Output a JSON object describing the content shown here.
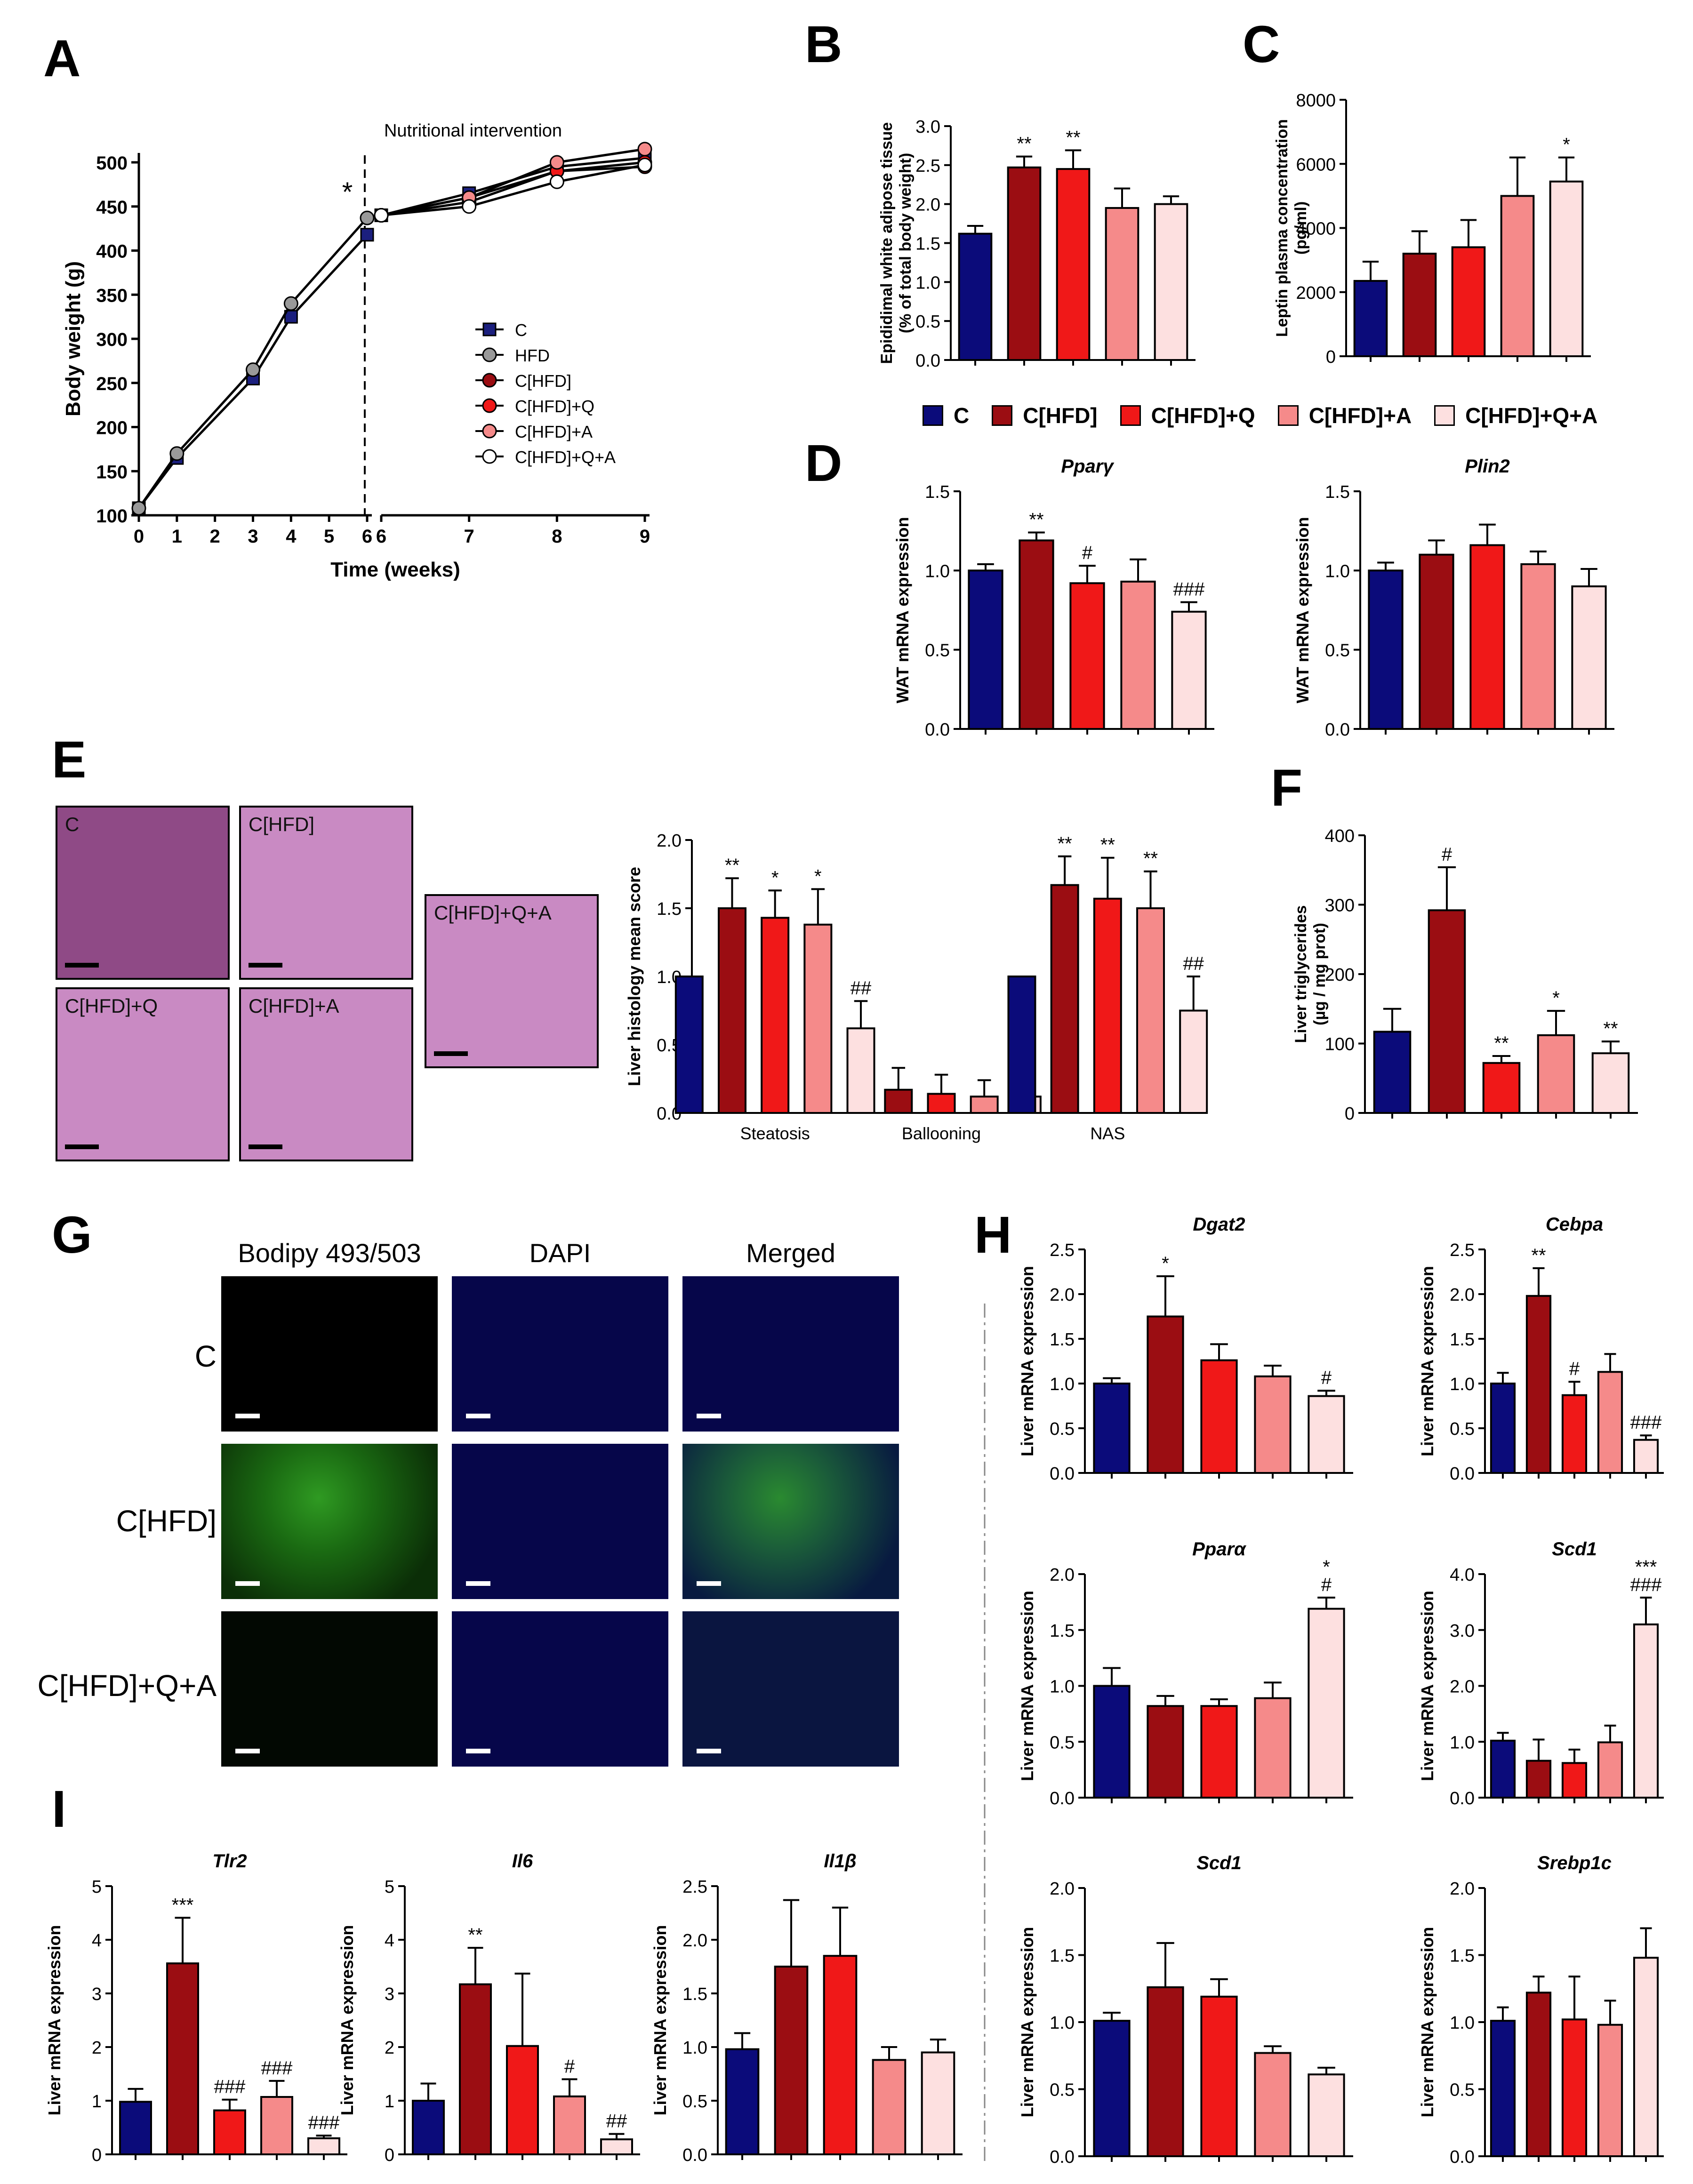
{
  "panels": {
    "A": "A",
    "B": "B",
    "C": "C",
    "D": "D",
    "E": "E",
    "F": "F",
    "G": "G",
    "H": "H",
    "I": "I"
  },
  "group_colors": {
    "C": "#0b0b7a",
    "C[HFD]": "#9b0d12",
    "C[HFD]+Q": "#f01818",
    "C[HFD]+A": "#f58a8a",
    "C[HFD]+Q+A": "#fde0e0"
  },
  "group_legend": [
    "C",
    "C[HFD]",
    "C[HFD]+Q",
    "C[HFD]+A",
    "C[HFD]+Q+A"
  ],
  "panel_E_photos": [
    "C",
    "C[HFD]",
    "C[HFD]+Q+A",
    "C[HFD]+Q",
    "C[HFD]+A"
  ],
  "panel_G": {
    "columns": [
      "Bodipy 493/503",
      "DAPI",
      "Merged"
    ],
    "rows": [
      "C",
      "C[HFD]",
      "C[HFD]+Q+A"
    ]
  },
  "chart_data": [
    {
      "id": "A",
      "type": "line",
      "xlabel": "Time (weeks)",
      "ylabel": "Body weight (g)",
      "annotation": "Nutritional intervention",
      "ylim": [
        100,
        500
      ],
      "yticks": [
        100,
        150,
        200,
        250,
        300,
        350,
        400,
        450,
        500
      ],
      "xticks_left": [
        "0",
        "1",
        "2",
        "3",
        "4",
        "5",
        "6"
      ],
      "xticks_right": [
        "6",
        "7",
        "8",
        "9"
      ],
      "legend": [
        "C",
        "HFD",
        "C[HFD]",
        "C[HFD]+Q",
        "C[HFD]+A",
        "C[HFD]+Q+A"
      ],
      "legend_colors": [
        "#1b1f7e",
        "#999999",
        "#9b0d12",
        "#f01818",
        "#f58a8a",
        "#ffffff"
      ],
      "star": "*",
      "series": [
        {
          "name": "C",
          "marker": "square",
          "color": "#1b1f7e",
          "segment": "pre",
          "x": [
            0,
            1,
            3,
            4,
            6
          ],
          "y": [
            108,
            165,
            255,
            325,
            418
          ]
        },
        {
          "name": "HFD",
          "marker": "circle",
          "color": "#999999",
          "segment": "pre",
          "x": [
            0,
            1,
            3,
            4,
            6
          ],
          "y": [
            108,
            170,
            265,
            340,
            437
          ]
        },
        {
          "name": "C",
          "marker": "square",
          "color": "#1b1f7e",
          "segment": "post",
          "x": [
            6,
            7,
            8,
            9
          ],
          "y": [
            440,
            465,
            495,
            505
          ]
        },
        {
          "name": "C[HFD]",
          "marker": "circle",
          "color": "#9b0d12",
          "segment": "post",
          "x": [
            6,
            7,
            8,
            9
          ],
          "y": [
            440,
            460,
            490,
            495
          ]
        },
        {
          "name": "C[HFD]+Q",
          "marker": "circle",
          "color": "#f01818",
          "segment": "post",
          "x": [
            6,
            7,
            8,
            9
          ],
          "y": [
            440,
            455,
            490,
            500
          ]
        },
        {
          "name": "C[HFD]+A",
          "marker": "circle",
          "color": "#f58a8a",
          "segment": "post",
          "x": [
            6,
            7,
            8,
            9
          ],
          "y": [
            440,
            460,
            500,
            515
          ]
        },
        {
          "name": "C[HFD]+Q+A",
          "marker": "circle",
          "color": "#ffffff",
          "segment": "post",
          "x": [
            6,
            7,
            8,
            9
          ],
          "y": [
            440,
            450,
            478,
            497
          ]
        }
      ]
    },
    {
      "id": "B",
      "type": "bar",
      "ylabel": "Epididimal white adipose tissue (% of total body weight)",
      "ylim": [
        0,
        3
      ],
      "yticks": [
        "0.0",
        "0.5",
        "1.0",
        "1.5",
        "2.0",
        "2.5",
        "3.0"
      ],
      "values": [
        1.62,
        2.47,
        2.45,
        1.95,
        2.0
      ],
      "errors": [
        0.1,
        0.14,
        0.24,
        0.25,
        0.1
      ],
      "annotations": [
        "",
        "**",
        "**",
        "",
        ""
      ]
    },
    {
      "id": "C",
      "type": "bar",
      "ylabel": "Leptin plasma concentration (pg/ml)",
      "ylim": [
        0,
        8000
      ],
      "yticks": [
        "0",
        "2000",
        "4000",
        "6000",
        "8000"
      ],
      "values": [
        2350,
        3200,
        3400,
        5000,
        5450
      ],
      "errors": [
        600,
        700,
        850,
        1200,
        750
      ],
      "annotations": [
        "",
        "",
        "",
        "",
        "*"
      ]
    },
    {
      "id": "D1",
      "type": "bar",
      "title": "Pparγ",
      "ylabel": "WAT mRNA expression",
      "ylim": [
        0,
        1.5
      ],
      "yticks": [
        "0.0",
        "0.5",
        "1.0",
        "1.5"
      ],
      "values": [
        1.0,
        1.19,
        0.92,
        0.93,
        0.74
      ],
      "errors": [
        0.04,
        0.05,
        0.11,
        0.14,
        0.06
      ],
      "annotations": [
        "",
        "**",
        "#",
        "",
        "###"
      ]
    },
    {
      "id": "D2",
      "type": "bar",
      "title": "Plin2",
      "ylabel": "WAT mRNA expression",
      "ylim": [
        0,
        1.5
      ],
      "yticks": [
        "0.0",
        "0.5",
        "1.0",
        "1.5"
      ],
      "values": [
        1.0,
        1.1,
        1.16,
        1.04,
        0.9
      ],
      "errors": [
        0.05,
        0.09,
        0.13,
        0.08,
        0.11
      ],
      "annotations": [
        "",
        "",
        "",
        "",
        ""
      ]
    },
    {
      "id": "E",
      "type": "bar",
      "ylabel": "Liver histology mean score",
      "ylim": [
        0,
        2
      ],
      "yticks": [
        "0.0",
        "0.5",
        "1.0",
        "1.5",
        "2.0"
      ],
      "categories": [
        "Steatosis",
        "Ballooning",
        "NAS"
      ],
      "series": [
        {
          "name": "C",
          "values": [
            1.0,
            0.0,
            1.0
          ],
          "errors": [
            0,
            0,
            0
          ],
          "annotations": [
            "",
            "",
            ""
          ]
        },
        {
          "name": "C[HFD]",
          "values": [
            1.5,
            0.17,
            1.67
          ],
          "errors": [
            0.22,
            0.16,
            0.21
          ],
          "annotations": [
            "**",
            "",
            "**"
          ]
        },
        {
          "name": "C[HFD]+Q",
          "values": [
            1.43,
            0.14,
            1.57
          ],
          "errors": [
            0.2,
            0.14,
            0.3
          ],
          "annotations": [
            "*",
            "",
            "**"
          ]
        },
        {
          "name": "C[HFD]+A",
          "values": [
            1.38,
            0.12,
            1.5
          ],
          "errors": [
            0.26,
            0.12,
            0.27
          ],
          "annotations": [
            "*",
            "",
            "**"
          ]
        },
        {
          "name": "C[HFD]+Q+A",
          "values": [
            0.62,
            0.12,
            0.75
          ],
          "errors": [
            0.2,
            0.12,
            0.25
          ],
          "annotations": [
            "##",
            "",
            "##"
          ]
        }
      ]
    },
    {
      "id": "F",
      "type": "bar",
      "ylabel": "Liver triglycerides (µg / mg prot)",
      "ylim": [
        0,
        400
      ],
      "yticks": [
        "0",
        "100",
        "200",
        "300",
        "400"
      ],
      "values": [
        117,
        292,
        72,
        112,
        86
      ],
      "errors": [
        33,
        62,
        10,
        35,
        17
      ],
      "annotations": [
        "",
        "#",
        "**",
        "*",
        "**"
      ]
    },
    {
      "id": "H1",
      "type": "bar",
      "title": "Dgat2",
      "ylabel": "Liver mRNA expression",
      "ylim": [
        0,
        2.5
      ],
      "yticks": [
        "0.0",
        "0.5",
        "1.0",
        "1.5",
        "2.0",
        "2.5"
      ],
      "values": [
        1.0,
        1.75,
        1.26,
        1.08,
        0.86
      ],
      "errors": [
        0.06,
        0.45,
        0.18,
        0.12,
        0.06
      ],
      "annotations": [
        "",
        "*",
        "",
        "",
        "#"
      ]
    },
    {
      "id": "H2",
      "type": "bar",
      "title": "Cebpa",
      "ylabel": "Liver mRNA expression",
      "ylim": [
        0,
        2.5
      ],
      "yticks": [
        "0.0",
        "0.5",
        "1.0",
        "1.5",
        "2.0",
        "2.5"
      ],
      "values": [
        1.0,
        1.98,
        0.87,
        1.13,
        0.37
      ],
      "errors": [
        0.12,
        0.31,
        0.15,
        0.2,
        0.05
      ],
      "annotations": [
        "",
        "**",
        "#",
        "",
        "###"
      ]
    },
    {
      "id": "H3",
      "type": "bar",
      "title": "Pparα",
      "ylabel": "Liver mRNA expression",
      "ylim": [
        0,
        2
      ],
      "yticks": [
        "0.0",
        "0.5",
        "1.0",
        "1.5",
        "2.0"
      ],
      "values": [
        1.0,
        0.82,
        0.82,
        0.89,
        1.69
      ],
      "errors": [
        0.16,
        0.09,
        0.06,
        0.14,
        0.1
      ],
      "annotations": [
        "",
        "",
        "",
        "",
        "*\n#"
      ]
    },
    {
      "id": "H4",
      "type": "bar",
      "title": "Scd1",
      "ylabel": "Liver mRNA expression",
      "ylim": [
        0,
        4
      ],
      "yticks": [
        "0.0",
        "1.0",
        "2.0",
        "3.0",
        "4.0"
      ],
      "values": [
        1.02,
        0.66,
        0.62,
        0.99,
        3.1
      ],
      "errors": [
        0.14,
        0.38,
        0.24,
        0.3,
        0.48
      ],
      "annotations": [
        "",
        "",
        "",
        "",
        "***\n###"
      ]
    },
    {
      "id": "H5",
      "type": "bar",
      "title": "Scd1",
      "ylabel": "Liver mRNA expression",
      "ylim": [
        0,
        2
      ],
      "yticks": [
        "0.0",
        "0.5",
        "1.0",
        "1.5",
        "2.0"
      ],
      "values": [
        1.01,
        1.26,
        1.19,
        0.77,
        0.61
      ],
      "errors": [
        0.06,
        0.33,
        0.13,
        0.05,
        0.05
      ],
      "annotations": [
        "",
        "",
        "",
        "",
        ""
      ]
    },
    {
      "id": "H6",
      "type": "bar",
      "title": "Srebp1c",
      "ylabel": "Liver mRNA expression",
      "ylim": [
        0,
        2
      ],
      "yticks": [
        "0.0",
        "0.5",
        "1.0",
        "1.5",
        "2.0"
      ],
      "values": [
        1.01,
        1.22,
        1.02,
        0.98,
        1.48
      ],
      "errors": [
        0.1,
        0.12,
        0.32,
        0.18,
        0.22
      ],
      "annotations": [
        "",
        "",
        "",
        "",
        ""
      ]
    },
    {
      "id": "I1",
      "type": "bar",
      "title": "Tlr2",
      "ylabel": "Liver mRNA expression",
      "ylim": [
        0,
        5
      ],
      "yticks": [
        "0",
        "1",
        "2",
        "3",
        "4",
        "5"
      ],
      "values": [
        0.98,
        3.56,
        0.82,
        1.07,
        0.3
      ],
      "errors": [
        0.24,
        0.85,
        0.2,
        0.3,
        0.05
      ],
      "annotations": [
        "",
        "***",
        "###",
        "###",
        "###"
      ]
    },
    {
      "id": "I2",
      "type": "bar",
      "title": "Il6",
      "ylabel": "Liver mRNA expression",
      "ylim": [
        0,
        5
      ],
      "yticks": [
        "0",
        "1",
        "2",
        "3",
        "4",
        "5"
      ],
      "values": [
        1.0,
        3.17,
        2.02,
        1.08,
        0.28
      ],
      "errors": [
        0.32,
        0.68,
        1.35,
        0.32,
        0.1
      ],
      "annotations": [
        "",
        "**",
        "",
        "#",
        "##"
      ]
    },
    {
      "id": "I3",
      "type": "bar",
      "title": "Il1β",
      "ylabel": "Liver mRNA expression",
      "ylim": [
        0,
        2.5
      ],
      "yticks": [
        "0.0",
        "0.5",
        "1.0",
        "1.5",
        "2.0",
        "2.5"
      ],
      "values": [
        0.98,
        1.75,
        1.85,
        0.88,
        0.95
      ],
      "errors": [
        0.15,
        0.62,
        0.45,
        0.12,
        0.12
      ],
      "annotations": [
        "",
        "",
        "",
        "",
        ""
      ]
    }
  ]
}
